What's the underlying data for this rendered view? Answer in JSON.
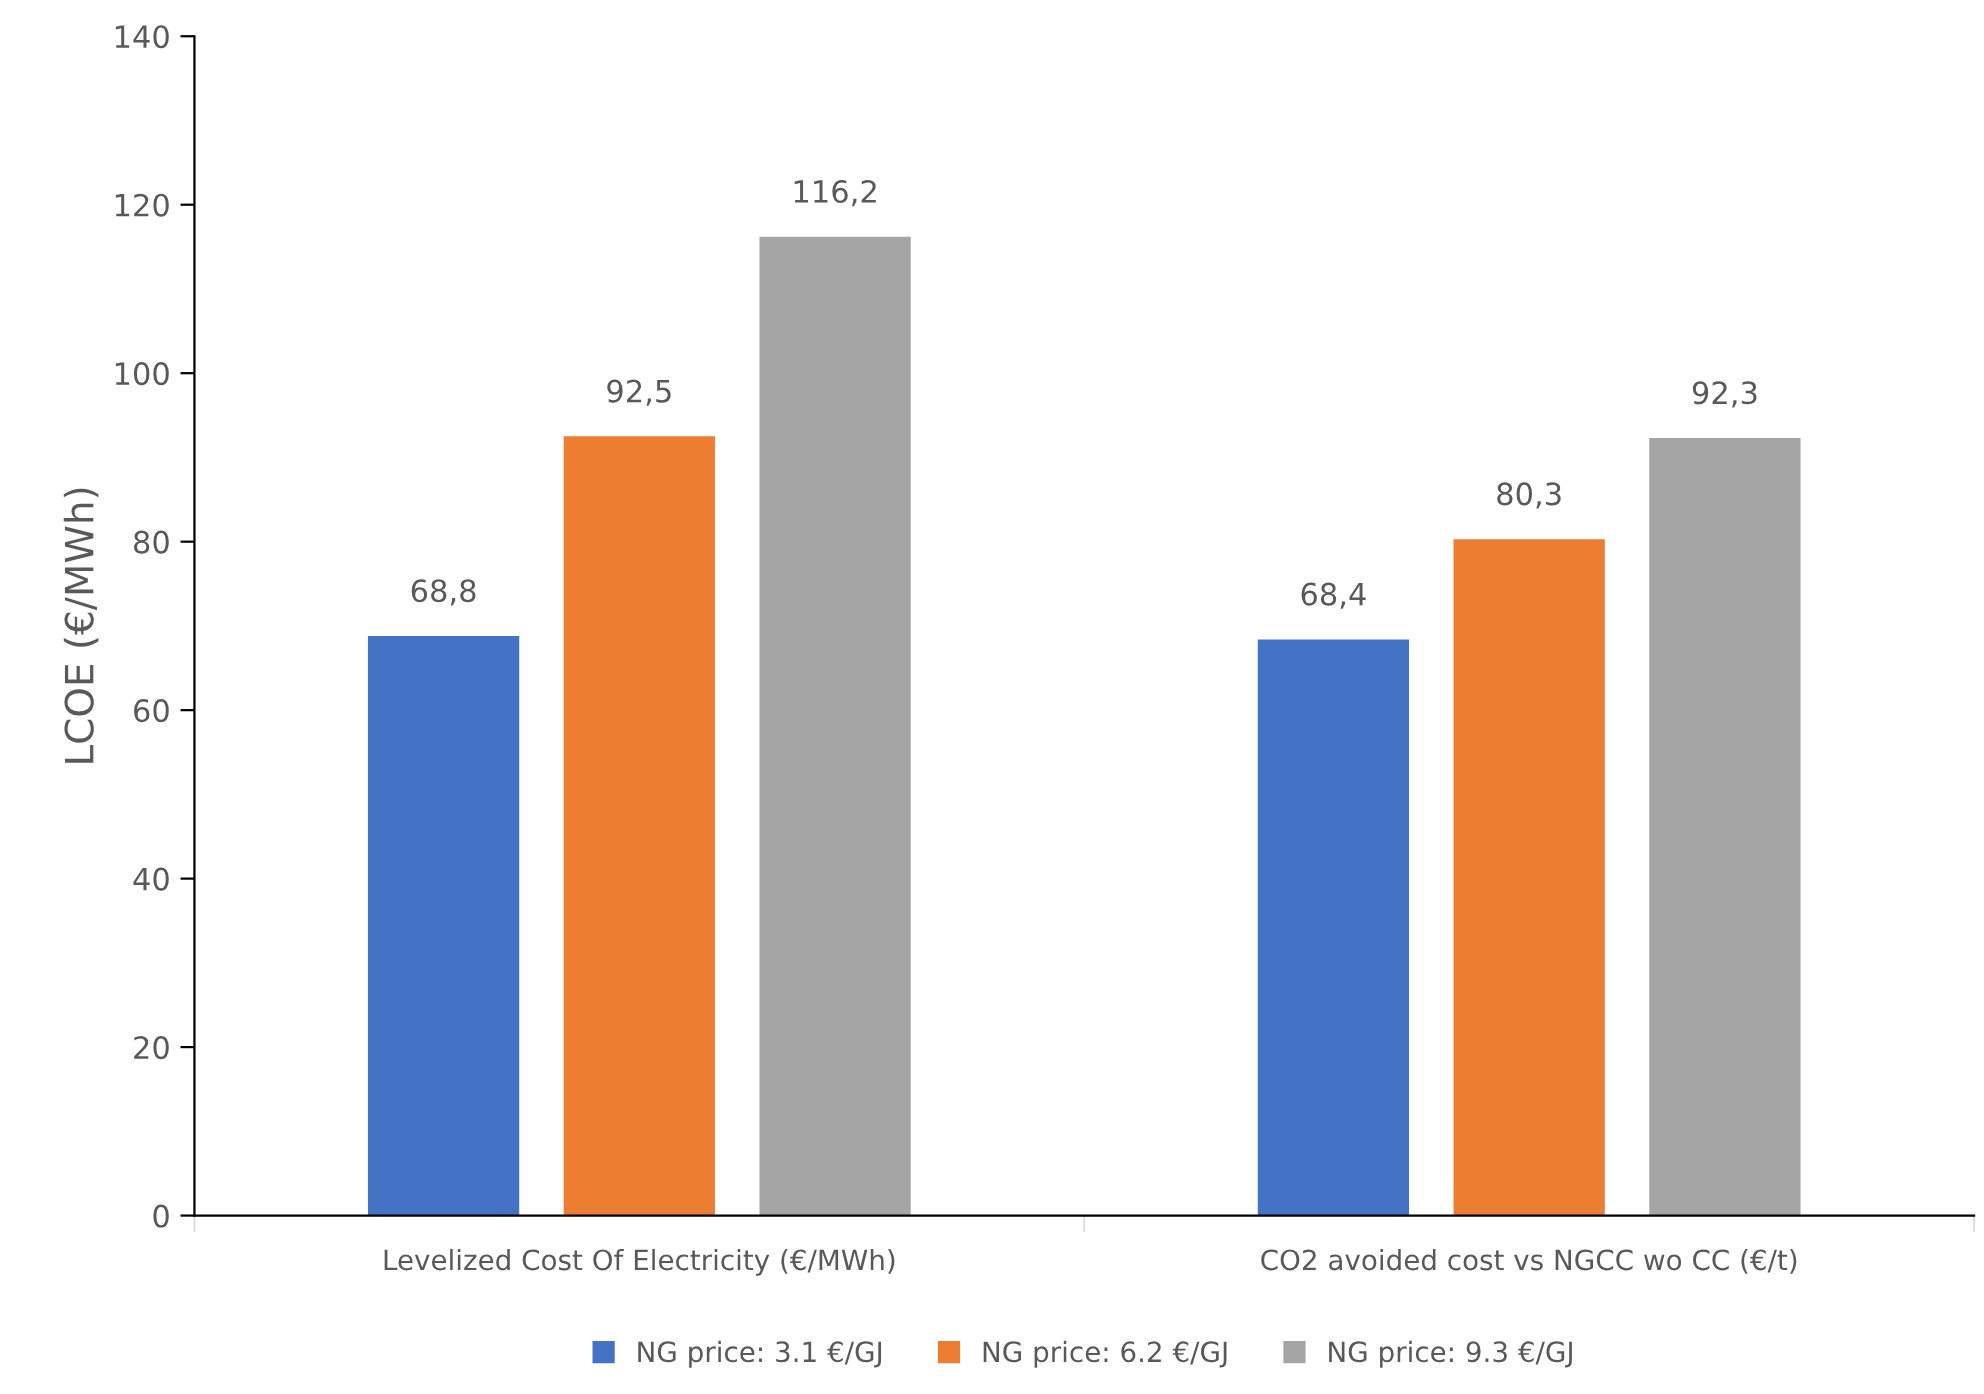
{
  "chart_data": {
    "type": "bar",
    "ylabel": "LCOE (€/MWh)",
    "categories": [
      "Levelized Cost Of Electricity (€/MWh)",
      "CO2 avoided cost vs NGCC wo CC (€/t)"
    ],
    "series": [
      {
        "name": "NG price: 3.1 €/GJ",
        "color": "#4472c4",
        "values": [
          68.8,
          68.4
        ],
        "value_labels": [
          "68,8",
          "68,4"
        ]
      },
      {
        "name": "NG price: 6.2 €/GJ",
        "color": "#ed7d31",
        "values": [
          92.5,
          80.3
        ],
        "value_labels": [
          "92,5",
          "80,3"
        ]
      },
      {
        "name": "NG price: 9.3 €/GJ",
        "color": "#a5a5a5",
        "values": [
          116.2,
          92.3
        ],
        "value_labels": [
          "116,2",
          "92,3"
        ]
      }
    ],
    "ylim": [
      0,
      140
    ],
    "yticks": [
      0,
      20,
      40,
      60,
      80,
      100,
      120,
      140
    ],
    "grid": false,
    "legend": "bottom"
  }
}
